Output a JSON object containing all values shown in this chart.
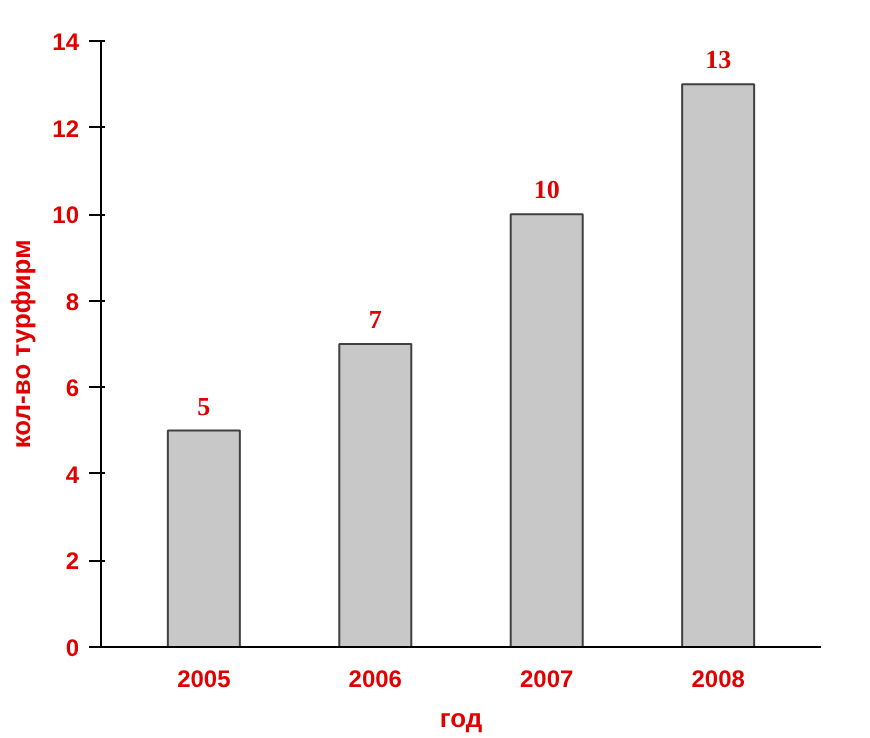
{
  "chart_data": {
    "type": "bar",
    "xlabel": "год",
    "ylabel": "кол-во турфирм",
    "categories": [
      "2005",
      "2006",
      "2007",
      "2008"
    ],
    "values": [
      5,
      7,
      10,
      13
    ],
    "color": "#c8c8c8",
    "ylim": [
      0,
      14
    ],
    "yticks": [
      0,
      2,
      4,
      6,
      8,
      10,
      12,
      14
    ],
    "grid": false,
    "data_labels": true
  }
}
